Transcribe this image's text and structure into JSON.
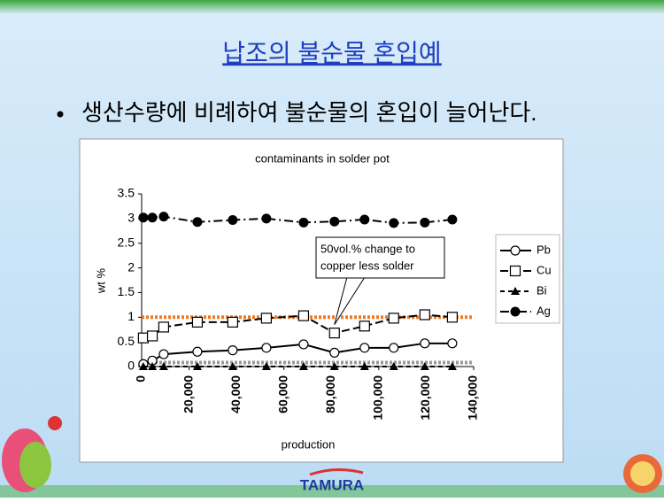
{
  "slide": {
    "title": "납조의 불순물 혼입예",
    "bullet": "생산수량에 비례하여 불순물의 혼입이 늘어난다.",
    "logo": "TAMURA"
  },
  "chart_data": {
    "type": "line",
    "title": "contaminants in solder pot",
    "x_label": "production",
    "y_label": "wt %",
    "x": [
      700,
      4500,
      9300,
      23500,
      38400,
      52600,
      68300,
      81300,
      94000,
      106300,
      119400,
      131000
    ],
    "series": [
      {
        "name": "Pb",
        "color": "#000000",
        "marker": "circle-open",
        "dash": "solid",
        "values": [
          0.05,
          0.12,
          0.25,
          0.3,
          0.33,
          0.38,
          0.45,
          0.28,
          0.38,
          0.38,
          0.47,
          0.47
        ]
      },
      {
        "name": "Cu",
        "color": "#000000",
        "marker": "square-open",
        "dash": "dashed",
        "values": [
          0.58,
          0.62,
          0.8,
          0.9,
          0.9,
          0.98,
          1.03,
          0.68,
          0.82,
          0.98,
          1.05,
          1.0
        ]
      },
      {
        "name": "Bi",
        "color": "#000000",
        "marker": "triangle",
        "dash": "short-dashed",
        "values": [
          0,
          0,
          0,
          0,
          0,
          0,
          0,
          0,
          0,
          0,
          0,
          0
        ]
      },
      {
        "name": "Ag",
        "color": "#000000",
        "marker": "circle-filled",
        "dash": "dash-dot",
        "values": [
          3.02,
          3.02,
          3.04,
          2.93,
          2.97,
          3.0,
          2.92,
          2.94,
          2.98,
          2.91,
          2.92,
          2.98
        ]
      }
    ],
    "reference_lines": [
      {
        "value": 1,
        "color": "#f07820"
      },
      {
        "value": 0.08,
        "color": "#999999"
      }
    ],
    "annotation": {
      "lines": [
        "50vol.% change to",
        "copper less solder"
      ],
      "x": 81300,
      "y": 0.85
    },
    "xlim": [
      0,
      140000
    ],
    "xticks": [
      0,
      {
        "value": 20000,
        "label": "20,000"
      },
      {
        "value": 40000,
        "label": "40,000"
      },
      {
        "value": 60000,
        "label": "60,000"
      },
      {
        "value": 80000,
        "label": "80,000"
      },
      {
        "value": 100000,
        "label": "100,000"
      },
      {
        "value": 120000,
        "label": "120,000"
      },
      {
        "value": 140000,
        "label": "140,000"
      }
    ],
    "ylim": [
      0,
      3.5
    ],
    "yticks": [
      0,
      0.5,
      1,
      1.5,
      2,
      2.5,
      3,
      3.5
    ],
    "legend": "right"
  }
}
